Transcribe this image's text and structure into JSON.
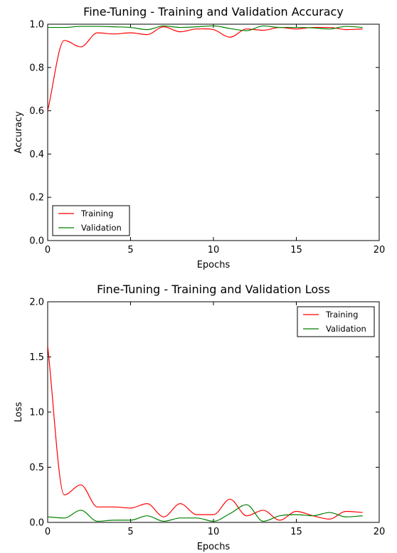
{
  "chart_data": [
    {
      "type": "line",
      "title": "Fine-Tuning - Training and Validation Accuracy",
      "xlabel": "Epochs",
      "ylabel": "Accuracy",
      "xlim": [
        0,
        20
      ],
      "ylim": [
        0.0,
        1.0
      ],
      "xticks": [
        "0",
        "5",
        "10",
        "15",
        "20"
      ],
      "yticks": [
        "0.0",
        "0.2",
        "0.4",
        "0.6",
        "0.8",
        "1.0"
      ],
      "grid": false,
      "legend_position": "lower-left",
      "x": [
        0,
        1,
        2,
        3,
        4,
        5,
        6,
        7,
        8,
        9,
        10,
        11,
        12,
        13,
        14,
        15,
        16,
        17,
        18,
        19
      ],
      "series": [
        {
          "name": "Training",
          "color": "#ff0000",
          "values": [
            0.6,
            0.925,
            0.895,
            0.96,
            0.955,
            0.96,
            0.952,
            0.988,
            0.965,
            0.978,
            0.975,
            0.94,
            0.978,
            0.972,
            0.985,
            0.978,
            0.985,
            0.985,
            0.975,
            0.978
          ]
        },
        {
          "name": "Validation",
          "color": "#008000",
          "values": [
            0.985,
            0.985,
            0.99,
            0.99,
            0.988,
            0.985,
            0.975,
            0.992,
            0.985,
            0.988,
            0.992,
            0.98,
            0.97,
            0.992,
            0.985,
            0.985,
            0.983,
            0.978,
            0.99,
            0.985
          ]
        }
      ]
    },
    {
      "type": "line",
      "title": "Fine-Tuning - Training and Validation Loss",
      "xlabel": "Epochs",
      "ylabel": "Loss",
      "xlim": [
        0,
        20
      ],
      "ylim": [
        0.0,
        2.0
      ],
      "xticks": [
        "0",
        "5",
        "10",
        "15",
        "20"
      ],
      "yticks": [
        "0.0",
        "0.5",
        "1.0",
        "1.5",
        "2.0"
      ],
      "grid": false,
      "legend_position": "upper-right",
      "x": [
        0,
        1,
        2,
        3,
        4,
        5,
        6,
        7,
        8,
        9,
        10,
        11,
        12,
        13,
        14,
        15,
        16,
        17,
        18,
        19
      ],
      "series": [
        {
          "name": "Training",
          "color": "#ff0000",
          "values": [
            1.6,
            0.25,
            0.34,
            0.14,
            0.14,
            0.13,
            0.17,
            0.05,
            0.17,
            0.07,
            0.07,
            0.21,
            0.06,
            0.11,
            0.02,
            0.1,
            0.06,
            0.03,
            0.1,
            0.09
          ]
        },
        {
          "name": "Validation",
          "color": "#008000",
          "values": [
            0.05,
            0.04,
            0.11,
            0.01,
            0.02,
            0.02,
            0.06,
            0.01,
            0.04,
            0.04,
            0.01,
            0.08,
            0.16,
            0.01,
            0.06,
            0.07,
            0.06,
            0.09,
            0.05,
            0.06
          ]
        }
      ]
    }
  ]
}
